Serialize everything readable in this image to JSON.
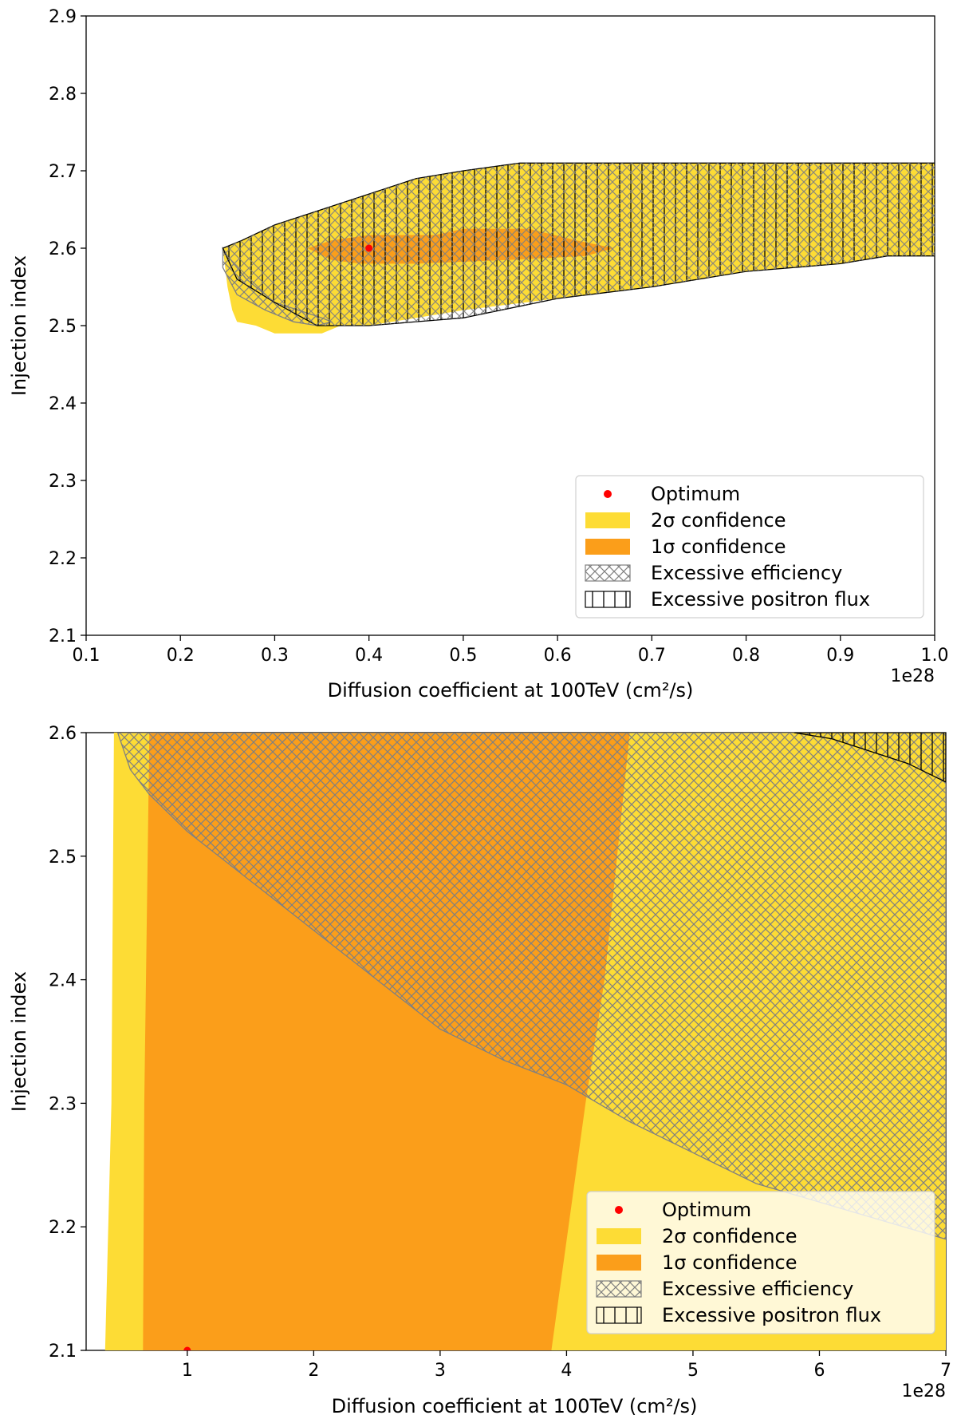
{
  "chart_data": [
    {
      "type": "contour",
      "xlabel": "Diffusion coefficient at 100TeV (cm²/s)",
      "ylabel": "Injection index",
      "x_offset_label": "1e28",
      "xlim": [
        0.1,
        1.0
      ],
      "ylim": [
        2.1,
        2.9
      ],
      "xticks": [
        "0.1",
        "0.2",
        "0.3",
        "0.4",
        "0.5",
        "0.6",
        "0.7",
        "0.8",
        "0.9",
        "1.0"
      ],
      "yticks": [
        "2.1",
        "2.2",
        "2.3",
        "2.4",
        "2.5",
        "2.6",
        "2.7",
        "2.8",
        "2.9"
      ],
      "grid": false,
      "legend_position": "lower-right",
      "legend": [
        "Optimum",
        "2σ confidence",
        "1σ confidence",
        "Excessive efficiency",
        "Excessive positron flux"
      ],
      "optimum": {
        "x": 0.4,
        "y": 2.6
      },
      "regions": {
        "two_sigma": [
          [
            0.245,
            2.6
          ],
          [
            0.265,
            2.61
          ],
          [
            0.3,
            2.63
          ],
          [
            0.35,
            2.65
          ],
          [
            0.4,
            2.67
          ],
          [
            0.45,
            2.69
          ],
          [
            0.5,
            2.7
          ],
          [
            0.56,
            2.71
          ],
          [
            1.0,
            2.71
          ],
          [
            1.0,
            2.59
          ],
          [
            0.95,
            2.59
          ],
          [
            0.9,
            2.58
          ],
          [
            0.8,
            2.57
          ],
          [
            0.7,
            2.55
          ],
          [
            0.6,
            2.535
          ],
          [
            0.5,
            2.52
          ],
          [
            0.4,
            2.5
          ],
          [
            0.37,
            2.5
          ],
          [
            0.35,
            2.49
          ],
          [
            0.3,
            2.49
          ],
          [
            0.28,
            2.5
          ],
          [
            0.26,
            2.505
          ],
          [
            0.255,
            2.52
          ],
          [
            0.25,
            2.55
          ],
          [
            0.245,
            2.6
          ]
        ],
        "one_sigma": [
          [
            0.335,
            2.6
          ],
          [
            0.36,
            2.61
          ],
          [
            0.4,
            2.617
          ],
          [
            0.47,
            2.617
          ],
          [
            0.5,
            2.625
          ],
          [
            0.57,
            2.625
          ],
          [
            0.62,
            2.61
          ],
          [
            0.66,
            2.6
          ],
          [
            0.63,
            2.59
          ],
          [
            0.55,
            2.585
          ],
          [
            0.45,
            2.58
          ],
          [
            0.39,
            2.58
          ],
          [
            0.36,
            2.585
          ],
          [
            0.335,
            2.6
          ]
        ],
        "excessive_efficiency": [
          [
            0.245,
            2.6
          ],
          [
            0.245,
            2.575
          ],
          [
            0.26,
            2.54
          ],
          [
            0.29,
            2.52
          ],
          [
            0.32,
            2.505
          ],
          [
            0.345,
            2.5
          ],
          [
            0.36,
            2.505
          ],
          [
            0.35,
            2.51
          ],
          [
            0.3,
            2.53
          ],
          [
            0.27,
            2.56
          ],
          [
            0.25,
            2.59
          ],
          [
            0.245,
            2.6
          ]
        ],
        "excessive_positron_flux": [
          [
            0.245,
            2.6
          ],
          [
            0.265,
            2.61
          ],
          [
            0.3,
            2.63
          ],
          [
            0.35,
            2.65
          ],
          [
            0.4,
            2.67
          ],
          [
            0.45,
            2.69
          ],
          [
            0.5,
            2.7
          ],
          [
            0.56,
            2.71
          ],
          [
            1.0,
            2.71
          ],
          [
            1.0,
            2.59
          ],
          [
            0.95,
            2.59
          ],
          [
            0.9,
            2.58
          ],
          [
            0.8,
            2.57
          ],
          [
            0.7,
            2.55
          ],
          [
            0.6,
            2.535
          ],
          [
            0.5,
            2.51
          ],
          [
            0.4,
            2.5
          ],
          [
            0.345,
            2.5
          ],
          [
            0.3,
            2.53
          ],
          [
            0.26,
            2.56
          ],
          [
            0.245,
            2.6
          ]
        ]
      }
    },
    {
      "type": "contour",
      "xlabel": "Diffusion coefficient at 100TeV (cm²/s)",
      "ylabel": "Injection index",
      "x_offset_label": "1e28",
      "xlim": [
        0.2,
        7.0
      ],
      "ylim": [
        2.1,
        2.6
      ],
      "xticks": [
        "1",
        "2",
        "3",
        "4",
        "5",
        "6",
        "7"
      ],
      "xtick_values": [
        1,
        2,
        3,
        4,
        5,
        6,
        7
      ],
      "yticks": [
        "2.1",
        "2.2",
        "2.3",
        "2.4",
        "2.5",
        "2.6"
      ],
      "grid": false,
      "legend_position": "lower-right",
      "legend": [
        "Optimum",
        "2σ confidence",
        "1σ confidence",
        "Excessive efficiency",
        "Excessive positron flux"
      ],
      "optimum": {
        "x": 1.0,
        "y": 2.1
      },
      "regions": {
        "two_sigma": [
          [
            0.35,
            2.1
          ],
          [
            0.4,
            2.3
          ],
          [
            0.42,
            2.6
          ],
          [
            7.0,
            2.6
          ],
          [
            7.0,
            2.1
          ]
        ],
        "one_sigma": [
          [
            0.65,
            2.1
          ],
          [
            0.66,
            2.3
          ],
          [
            0.7,
            2.6
          ],
          [
            4.5,
            2.6
          ],
          [
            4.3,
            2.4
          ],
          [
            4.15,
            2.3
          ],
          [
            3.88,
            2.1
          ]
        ],
        "excessive_efficiency": [
          [
            0.45,
            2.6
          ],
          [
            0.55,
            2.57
          ],
          [
            0.7,
            2.55
          ],
          [
            1.0,
            2.52
          ],
          [
            1.5,
            2.48
          ],
          [
            2.0,
            2.44
          ],
          [
            2.5,
            2.4
          ],
          [
            3.0,
            2.36
          ],
          [
            3.5,
            2.335
          ],
          [
            4.0,
            2.315
          ],
          [
            4.5,
            2.285
          ],
          [
            5.0,
            2.26
          ],
          [
            5.5,
            2.235
          ],
          [
            6.0,
            2.22
          ],
          [
            6.5,
            2.205
          ],
          [
            7.0,
            2.19
          ],
          [
            7.0,
            2.6
          ]
        ],
        "excessive_positron_flux": [
          [
            5.8,
            2.6
          ],
          [
            6.2,
            2.6
          ],
          [
            7.0,
            2.6
          ],
          [
            7.0,
            2.56
          ],
          [
            6.9,
            2.565
          ],
          [
            6.7,
            2.575
          ],
          [
            6.4,
            2.585
          ],
          [
            6.1,
            2.595
          ],
          [
            5.8,
            2.6
          ]
        ]
      }
    }
  ]
}
